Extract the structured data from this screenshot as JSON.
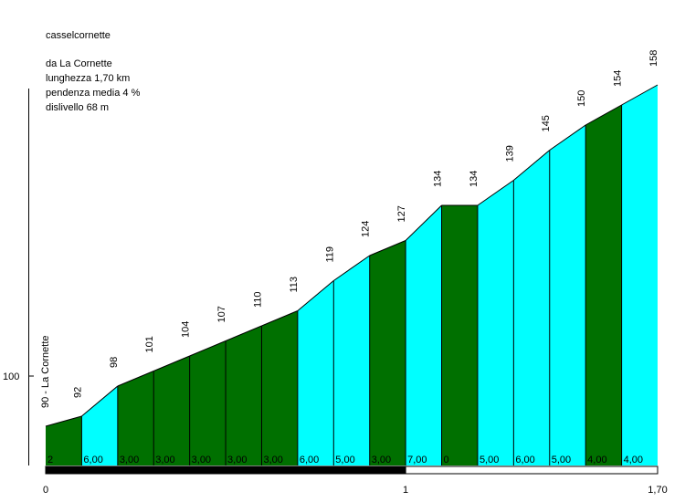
{
  "chart_data": {
    "type": "area",
    "title": "casselcornette",
    "info_lines": [
      "da La Cornette",
      "lunghezza 1,70 km",
      "pendenza media 4 %",
      "dislivello 68 m"
    ],
    "start_label": "90 - La Cornette",
    "y_tick_labels": [
      {
        "value": 100,
        "label": "100"
      }
    ],
    "x_tick_labels": [
      {
        "value": 0,
        "label": "0"
      },
      {
        "value": 1,
        "label": "1"
      },
      {
        "value": 1.7,
        "label": "1,70"
      }
    ],
    "xlim": [
      0,
      1.7
    ],
    "ylim": [
      77,
      168
    ],
    "segment_length_km": 0.1,
    "segments": [
      {
        "start_km": 0.0,
        "elev_start": 90,
        "elev_end": 92,
        "grade_label": "2",
        "color": "dark"
      },
      {
        "start_km": 0.1,
        "elev_start": 92,
        "elev_end": 98,
        "grade_label": "6,00",
        "color": "light"
      },
      {
        "start_km": 0.2,
        "elev_start": 98,
        "elev_end": 101,
        "grade_label": "3,00",
        "color": "dark"
      },
      {
        "start_km": 0.3,
        "elev_start": 101,
        "elev_end": 104,
        "grade_label": "3,00",
        "color": "dark"
      },
      {
        "start_km": 0.4,
        "elev_start": 104,
        "elev_end": 107,
        "grade_label": "3,00",
        "color": "dark"
      },
      {
        "start_km": 0.5,
        "elev_start": 107,
        "elev_end": 110,
        "grade_label": "3,00",
        "color": "dark"
      },
      {
        "start_km": 0.6,
        "elev_start": 110,
        "elev_end": 113,
        "grade_label": "3,00",
        "color": "dark"
      },
      {
        "start_km": 0.7,
        "elev_start": 113,
        "elev_end": 119,
        "grade_label": "6,00",
        "color": "light"
      },
      {
        "start_km": 0.8,
        "elev_start": 119,
        "elev_end": 124,
        "grade_label": "5,00",
        "color": "light"
      },
      {
        "start_km": 0.9,
        "elev_start": 124,
        "elev_end": 127,
        "grade_label": "3,00",
        "color": "dark"
      },
      {
        "start_km": 1.0,
        "elev_start": 127,
        "elev_end": 134,
        "grade_label": "7,00",
        "color": "light"
      },
      {
        "start_km": 1.1,
        "elev_start": 134,
        "elev_end": 134,
        "grade_label": "0",
        "color": "dark"
      },
      {
        "start_km": 1.2,
        "elev_start": 134,
        "elev_end": 139,
        "grade_label": "5,00",
        "color": "light"
      },
      {
        "start_km": 1.3,
        "elev_start": 139,
        "elev_end": 145,
        "grade_label": "6,00",
        "color": "light"
      },
      {
        "start_km": 1.4,
        "elev_start": 145,
        "elev_end": 150,
        "grade_label": "5,00",
        "color": "light"
      },
      {
        "start_km": 1.5,
        "elev_start": 150,
        "elev_end": 154,
        "grade_label": "4,00",
        "color": "dark"
      },
      {
        "start_km": 1.6,
        "elev_start": 154,
        "elev_end": 158,
        "grade_label": "4,00",
        "color": "light"
      }
    ],
    "point_labels": [
      {
        "km": 0.1,
        "label": "92"
      },
      {
        "km": 0.2,
        "label": "98"
      },
      {
        "km": 0.3,
        "label": "101"
      },
      {
        "km": 0.4,
        "label": "104"
      },
      {
        "km": 0.5,
        "label": "107"
      },
      {
        "km": 0.6,
        "label": "110"
      },
      {
        "km": 0.7,
        "label": "113"
      },
      {
        "km": 0.8,
        "label": "119"
      },
      {
        "km": 0.9,
        "label": "124"
      },
      {
        "km": 1.0,
        "label": "127"
      },
      {
        "km": 1.1,
        "label": "134"
      },
      {
        "km": 1.2,
        "label": "134"
      },
      {
        "km": 1.3,
        "label": "139"
      },
      {
        "km": 1.4,
        "label": "145"
      },
      {
        "km": 1.5,
        "label": "150"
      },
      {
        "km": 1.6,
        "label": "154"
      },
      {
        "km": 1.7,
        "label": "158"
      }
    ],
    "km_bar": [
      {
        "from_km": 0,
        "to_km": 1,
        "color": "#000000"
      },
      {
        "from_km": 1,
        "to_km": 1.7,
        "color": "#ffffff"
      }
    ],
    "colors": {
      "dark": "#007000",
      "light": "#00ffff",
      "line": "#000000"
    }
  }
}
